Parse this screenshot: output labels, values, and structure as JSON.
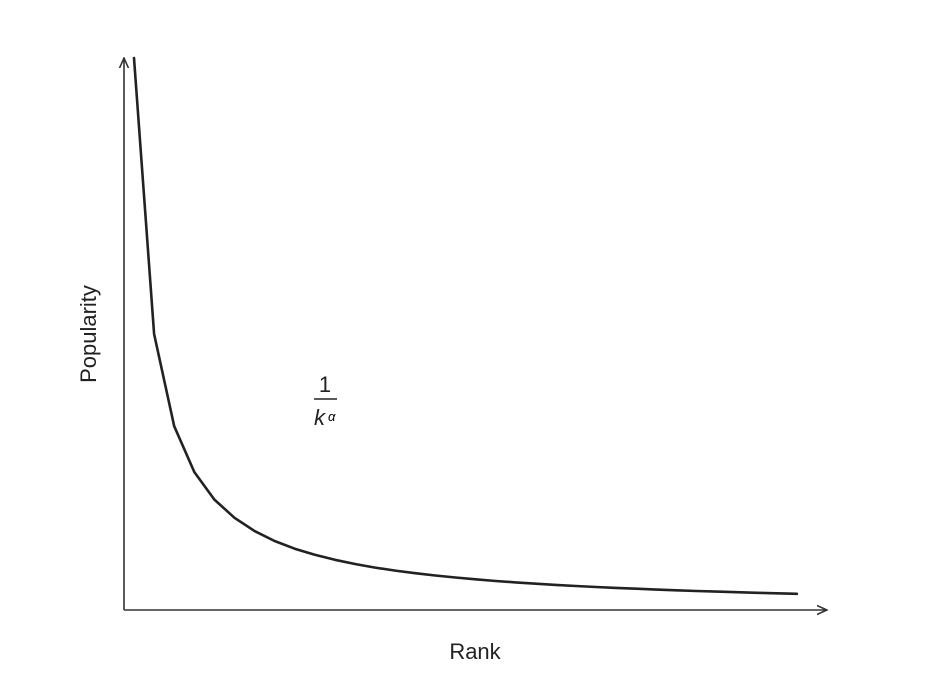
{
  "chart_data": {
    "type": "line",
    "title": "",
    "xlabel": "Rank",
    "ylabel": "Popularity",
    "x": [
      1,
      2,
      3,
      4,
      5,
      6,
      7,
      8,
      9,
      10,
      11,
      12,
      13,
      14,
      15,
      16,
      17,
      18,
      19,
      20,
      21,
      22,
      23,
      24,
      25,
      26,
      27,
      28,
      29,
      30,
      31,
      32,
      33,
      34
    ],
    "series": [
      {
        "name": "",
        "values": [
          1.0,
          0.5,
          0.333,
          0.25,
          0.2,
          0.167,
          0.143,
          0.125,
          0.111,
          0.1,
          0.0909,
          0.0833,
          0.0769,
          0.0714,
          0.0667,
          0.0625,
          0.0588,
          0.0556,
          0.0526,
          0.05,
          0.0476,
          0.0455,
          0.0435,
          0.0417,
          0.04,
          0.0385,
          0.037,
          0.0357,
          0.0345,
          0.0333,
          0.0323,
          0.03125,
          0.0303,
          0.0294
        ]
      }
    ],
    "xlim": [
      0.5,
      35.5
    ],
    "ylim": [
      0,
      1
    ],
    "grid": false,
    "legend": "none",
    "annotation": {
      "numerator": "1",
      "base": "k",
      "exponent": "α"
    }
  }
}
